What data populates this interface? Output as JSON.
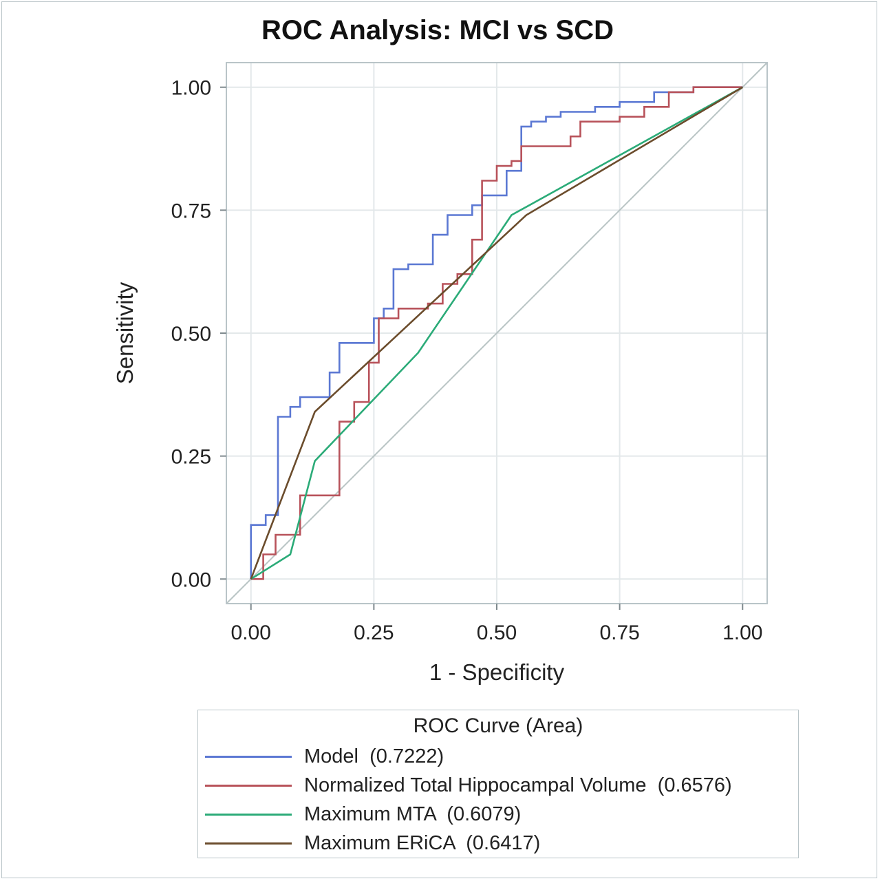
{
  "chart_data": {
    "type": "line",
    "title": "ROC Analysis: MCI vs SCD",
    "xlabel": "1 - Specificity",
    "ylabel": "Sensitivity",
    "xlim": [
      -0.05,
      1.05
    ],
    "ylim": [
      -0.05,
      1.05
    ],
    "xticks": [
      "0.00",
      "0.25",
      "0.50",
      "0.75",
      "1.00"
    ],
    "yticks": [
      "0.00",
      "0.25",
      "0.50",
      "0.75",
      "1.00"
    ],
    "grid": true,
    "reference_line": {
      "x": [
        0,
        1
      ],
      "y": [
        0,
        1
      ],
      "color": "#b8c4c4"
    },
    "legend": {
      "title": "ROC Curve (Area)",
      "position": "bottom"
    },
    "series": [
      {
        "name": "Model  (0.7222)",
        "color": "#5b78d3",
        "step": true,
        "x": [
          0,
          0,
          0.03,
          0.03,
          0.055,
          0.055,
          0.08,
          0.08,
          0.1,
          0.1,
          0.16,
          0.16,
          0.18,
          0.18,
          0.2,
          0.2,
          0.25,
          0.25,
          0.27,
          0.27,
          0.29,
          0.29,
          0.32,
          0.32,
          0.37,
          0.37,
          0.4,
          0.4,
          0.45,
          0.45,
          0.47,
          0.47,
          0.5,
          0.5,
          0.52,
          0.52,
          0.55,
          0.55,
          0.57,
          0.57,
          0.6,
          0.6,
          0.63,
          0.63,
          0.7,
          0.7,
          0.75,
          0.75,
          0.82,
          0.82,
          0.9,
          0.9,
          0.92,
          0.92,
          1.0
        ],
        "y": [
          0,
          0.11,
          0.11,
          0.13,
          0.13,
          0.33,
          0.33,
          0.35,
          0.35,
          0.37,
          0.37,
          0.42,
          0.42,
          0.48,
          0.48,
          0.48,
          0.48,
          0.53,
          0.53,
          0.55,
          0.55,
          0.63,
          0.63,
          0.64,
          0.64,
          0.7,
          0.7,
          0.74,
          0.74,
          0.76,
          0.76,
          0.78,
          0.78,
          0.78,
          0.78,
          0.83,
          0.83,
          0.92,
          0.92,
          0.93,
          0.93,
          0.94,
          0.94,
          0.95,
          0.95,
          0.96,
          0.96,
          0.97,
          0.97,
          0.99,
          0.99,
          1.0,
          1.0,
          1.0,
          1.0
        ]
      },
      {
        "name": "Normalized Total Hippocampal Volume  (0.6576)",
        "color": "#b8525a",
        "step": true,
        "x": [
          0,
          0.025,
          0.025,
          0.05,
          0.05,
          0.1,
          0.1,
          0.11,
          0.11,
          0.18,
          0.18,
          0.21,
          0.21,
          0.24,
          0.24,
          0.26,
          0.26,
          0.3,
          0.3,
          0.36,
          0.36,
          0.39,
          0.39,
          0.42,
          0.42,
          0.45,
          0.45,
          0.47,
          0.47,
          0.5,
          0.5,
          0.53,
          0.53,
          0.55,
          0.55,
          0.58,
          0.58,
          0.65,
          0.65,
          0.67,
          0.67,
          0.69,
          0.69,
          0.75,
          0.75,
          0.8,
          0.8,
          0.85,
          0.85,
          0.9,
          0.9,
          1.0
        ],
        "y": [
          0,
          0,
          0.05,
          0.05,
          0.09,
          0.09,
          0.17,
          0.17,
          0.17,
          0.17,
          0.32,
          0.32,
          0.36,
          0.36,
          0.44,
          0.44,
          0.53,
          0.53,
          0.55,
          0.55,
          0.56,
          0.56,
          0.6,
          0.6,
          0.62,
          0.62,
          0.69,
          0.69,
          0.81,
          0.81,
          0.84,
          0.84,
          0.85,
          0.85,
          0.88,
          0.88,
          0.88,
          0.88,
          0.9,
          0.9,
          0.93,
          0.93,
          0.93,
          0.93,
          0.94,
          0.94,
          0.96,
          0.96,
          0.99,
          0.99,
          1.0,
          1.0
        ]
      },
      {
        "name": "Maximum MTA  (0.6079)",
        "color": "#2bab78",
        "step": false,
        "x": [
          0,
          0.08,
          0.13,
          0.34,
          0.53,
          1.0
        ],
        "y": [
          0,
          0.05,
          0.24,
          0.46,
          0.74,
          1.0
        ]
      },
      {
        "name": "Maximum ERiCA  (0.6417)",
        "color": "#6b4c2c",
        "step": false,
        "x": [
          0,
          0.13,
          0.56,
          1.0
        ],
        "y": [
          0,
          0.34,
          0.74,
          1.0
        ]
      }
    ]
  }
}
